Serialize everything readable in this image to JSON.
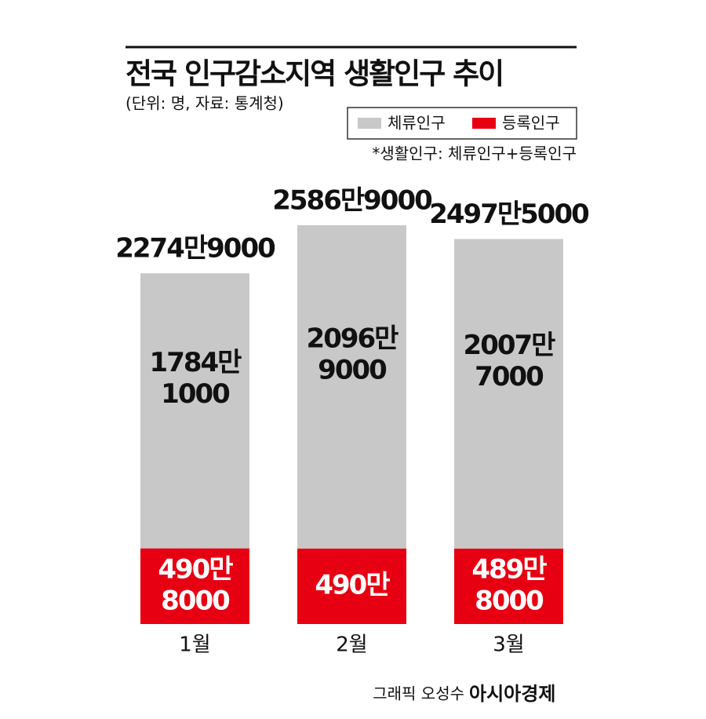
{
  "chart_data": {
    "type": "stacked_bar",
    "title": "전국 인구감소지역 생활인구 추이",
    "subtitle": "(단위: 명, 자료: 통계청)",
    "note": "*생활인구: 체류인구+등록인구",
    "credit": "그래픽 오성수",
    "source": "아시아경제",
    "categories": [
      "1월",
      "2월",
      "3월"
    ],
    "series": [
      {
        "name": "등록인구",
        "color": "#e60012",
        "values": [
          4908000,
          4900000,
          4898000
        ],
        "value_labels": [
          [
            "490만",
            "8000"
          ],
          [
            "490만"
          ],
          [
            "489만",
            "8000"
          ]
        ]
      },
      {
        "name": "체류인구",
        "color": "#c8c8c8",
        "values": [
          17841000,
          20969000,
          20077000
        ],
        "value_labels": [
          [
            "1784만",
            "1000"
          ],
          [
            "2096만",
            "9000"
          ],
          [
            "2007만",
            "7000"
          ]
        ]
      }
    ],
    "total_labels": [
      "2274만9000",
      "2586만9000",
      "2497만5000"
    ],
    "legend_order": [
      1,
      0
    ]
  }
}
